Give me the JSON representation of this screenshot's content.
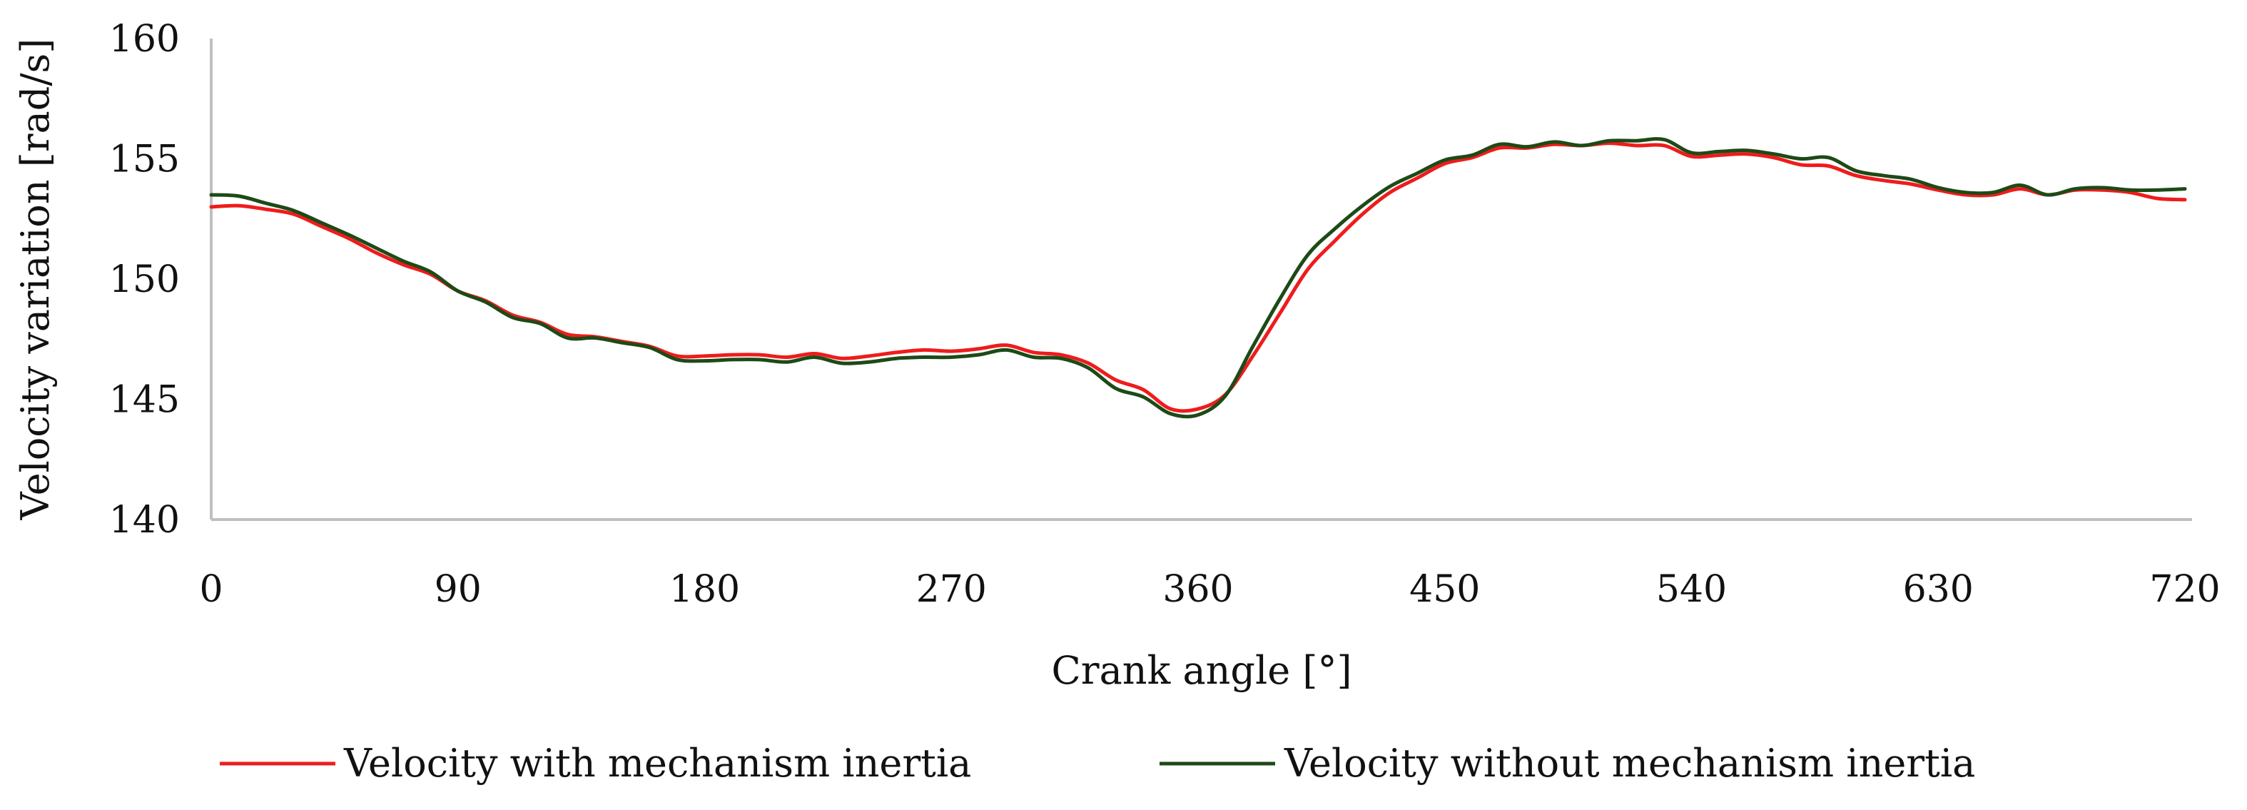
{
  "chart_data": {
    "type": "line",
    "title": "",
    "xlabel": "Crank angle [°]",
    "ylabel": "Velocity variation [rad/s]",
    "xlim": [
      0,
      720
    ],
    "ylim": [
      140,
      160
    ],
    "xticks": [
      0,
      90,
      180,
      270,
      360,
      450,
      540,
      630,
      720
    ],
    "yticks": [
      140,
      145,
      150,
      155,
      160
    ],
    "x_tick_labels": [
      "0",
      "90",
      "180",
      "270",
      "360",
      "450",
      "540",
      "630",
      "720"
    ],
    "y_tick_labels": [
      "140",
      "145",
      "150",
      "155",
      "160"
    ],
    "grid": false,
    "legend_position": "bottom",
    "series": [
      {
        "name": "Velocity with mechanism inertia",
        "color": "#ee1c1c",
        "points": [
          [
            0,
            153.0
          ],
          [
            10,
            153.05
          ],
          [
            20,
            152.9
          ],
          [
            30,
            152.7
          ],
          [
            40,
            152.2
          ],
          [
            50,
            151.7
          ],
          [
            60,
            151.1
          ],
          [
            70,
            150.6
          ],
          [
            80,
            150.2
          ],
          [
            90,
            149.5
          ],
          [
            100,
            149.1
          ],
          [
            110,
            148.5
          ],
          [
            120,
            148.2
          ],
          [
            130,
            147.7
          ],
          [
            140,
            147.6
          ],
          [
            150,
            147.4
          ],
          [
            160,
            147.2
          ],
          [
            170,
            146.8
          ],
          [
            180,
            146.8
          ],
          [
            190,
            146.85
          ],
          [
            200,
            146.85
          ],
          [
            210,
            146.75
          ],
          [
            220,
            146.9
          ],
          [
            230,
            146.7
          ],
          [
            240,
            146.8
          ],
          [
            250,
            146.95
          ],
          [
            260,
            147.05
          ],
          [
            270,
            147.0
          ],
          [
            280,
            147.1
          ],
          [
            290,
            147.25
          ],
          [
            300,
            146.95
          ],
          [
            310,
            146.85
          ],
          [
            320,
            146.5
          ],
          [
            330,
            145.8
          ],
          [
            340,
            145.4
          ],
          [
            350,
            144.6
          ],
          [
            360,
            144.6
          ],
          [
            370,
            145.2
          ],
          [
            380,
            146.8
          ],
          [
            390,
            148.6
          ],
          [
            400,
            150.4
          ],
          [
            410,
            151.6
          ],
          [
            420,
            152.7
          ],
          [
            430,
            153.6
          ],
          [
            440,
            154.2
          ],
          [
            450,
            154.8
          ],
          [
            460,
            155.05
          ],
          [
            470,
            155.45
          ],
          [
            480,
            155.45
          ],
          [
            490,
            155.6
          ],
          [
            500,
            155.55
          ],
          [
            510,
            155.65
          ],
          [
            520,
            155.55
          ],
          [
            530,
            155.55
          ],
          [
            540,
            155.1
          ],
          [
            550,
            155.15
          ],
          [
            560,
            155.2
          ],
          [
            570,
            155.05
          ],
          [
            580,
            154.75
          ],
          [
            590,
            154.7
          ],
          [
            600,
            154.3
          ],
          [
            610,
            154.1
          ],
          [
            620,
            153.95
          ],
          [
            630,
            153.7
          ],
          [
            640,
            153.5
          ],
          [
            650,
            153.5
          ],
          [
            660,
            153.75
          ],
          [
            670,
            153.5
          ],
          [
            680,
            153.7
          ],
          [
            690,
            153.7
          ],
          [
            700,
            153.6
          ],
          [
            710,
            153.35
          ],
          [
            720,
            153.3
          ]
        ]
      },
      {
        "name": "Velocity without mechanism inertia",
        "color": "#1d4a17",
        "points": [
          [
            0,
            153.5
          ],
          [
            10,
            153.45
          ],
          [
            20,
            153.15
          ],
          [
            30,
            152.85
          ],
          [
            40,
            152.35
          ],
          [
            50,
            151.85
          ],
          [
            60,
            151.3
          ],
          [
            70,
            150.75
          ],
          [
            80,
            150.3
          ],
          [
            90,
            149.5
          ],
          [
            100,
            149.05
          ],
          [
            110,
            148.4
          ],
          [
            120,
            148.15
          ],
          [
            130,
            147.55
          ],
          [
            140,
            147.55
          ],
          [
            150,
            147.35
          ],
          [
            160,
            147.15
          ],
          [
            170,
            146.65
          ],
          [
            180,
            146.6
          ],
          [
            190,
            146.65
          ],
          [
            200,
            146.65
          ],
          [
            210,
            146.55
          ],
          [
            220,
            146.75
          ],
          [
            230,
            146.5
          ],
          [
            240,
            146.55
          ],
          [
            250,
            146.7
          ],
          [
            260,
            146.75
          ],
          [
            270,
            146.75
          ],
          [
            280,
            146.85
          ],
          [
            290,
            147.05
          ],
          [
            300,
            146.75
          ],
          [
            310,
            146.7
          ],
          [
            320,
            146.3
          ],
          [
            330,
            145.45
          ],
          [
            340,
            145.1
          ],
          [
            350,
            144.4
          ],
          [
            360,
            144.35
          ],
          [
            370,
            145.15
          ],
          [
            380,
            147.2
          ],
          [
            390,
            149.2
          ],
          [
            400,
            151.0
          ],
          [
            410,
            152.1
          ],
          [
            420,
            153.05
          ],
          [
            430,
            153.85
          ],
          [
            440,
            154.4
          ],
          [
            450,
            154.95
          ],
          [
            460,
            155.15
          ],
          [
            470,
            155.6
          ],
          [
            480,
            155.5
          ],
          [
            490,
            155.7
          ],
          [
            500,
            155.55
          ],
          [
            510,
            155.75
          ],
          [
            520,
            155.75
          ],
          [
            530,
            155.8
          ],
          [
            540,
            155.25
          ],
          [
            550,
            155.3
          ],
          [
            560,
            155.35
          ],
          [
            570,
            155.2
          ],
          [
            580,
            155.0
          ],
          [
            590,
            155.05
          ],
          [
            600,
            154.5
          ],
          [
            610,
            154.3
          ],
          [
            620,
            154.15
          ],
          [
            630,
            153.8
          ],
          [
            640,
            153.6
          ],
          [
            650,
            153.6
          ],
          [
            660,
            153.9
          ],
          [
            670,
            153.5
          ],
          [
            680,
            153.75
          ],
          [
            690,
            153.8
          ],
          [
            700,
            153.7
          ],
          [
            710,
            153.7
          ],
          [
            720,
            153.75
          ]
        ]
      }
    ]
  }
}
